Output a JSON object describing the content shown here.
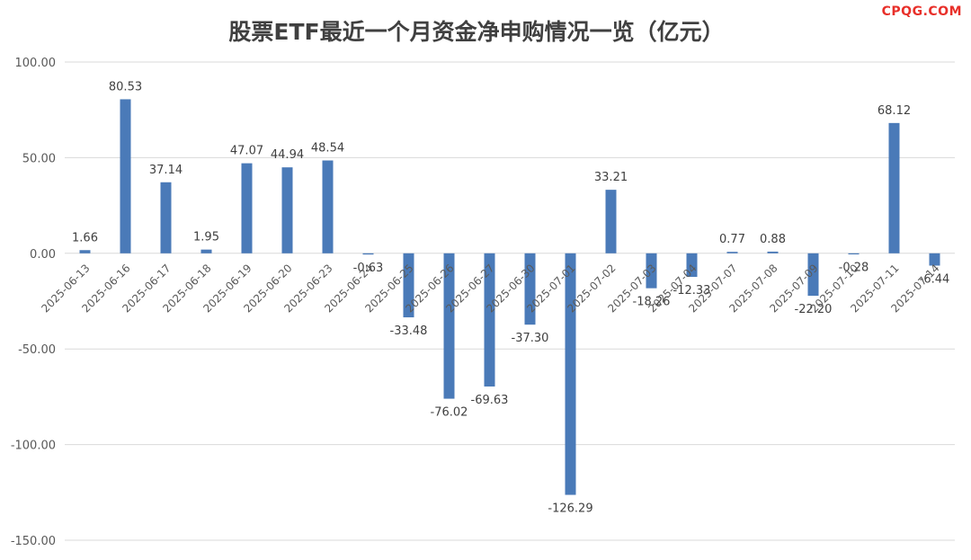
{
  "watermark": "CPQG.COM",
  "chart_data": {
    "type": "bar",
    "title": "股票ETF最近一个月资金净申购情况一览（亿元）",
    "xlabel": "",
    "ylabel": "",
    "ylim": [
      -150,
      100
    ],
    "yticks": [
      100,
      50,
      0,
      -50,
      -100,
      -150
    ],
    "ytick_labels": [
      "100.00",
      "50.00",
      "0.00",
      "-50.00",
      "-100.00",
      "-150.00"
    ],
    "grid": true,
    "legend": "none",
    "bar_color": "#4a7ab8",
    "categories": [
      "2025-06-13",
      "2025-06-16",
      "2025-06-17",
      "2025-06-18",
      "2025-06-19",
      "2025-06-20",
      "2025-06-23",
      "2025-06-24",
      "2025-06-25",
      "2025-06-26",
      "2025-06-27",
      "2025-06-30",
      "2025-07-01",
      "2025-07-02",
      "2025-07-03",
      "2025-07-04",
      "2025-07-07",
      "2025-07-08",
      "2025-07-09",
      "2025-07-10",
      "2025-07-11",
      "2025-07-14"
    ],
    "values": [
      1.66,
      80.53,
      37.14,
      1.95,
      47.07,
      44.94,
      48.54,
      -0.63,
      -33.48,
      -76.02,
      -69.63,
      -37.3,
      -126.29,
      33.21,
      -18.26,
      -12.33,
      0.77,
      0.88,
      -22.2,
      -0.28,
      68.12,
      -6.44
    ],
    "value_labels": [
      "1.66",
      "80.53",
      "37.14",
      "1.95",
      "47.07",
      "44.94",
      "48.54",
      "-0.63",
      "-33.48",
      "-76.02",
      "-69.63",
      "-37.30",
      "-126.29",
      "33.21",
      "-18.26",
      "-12.33",
      "0.77",
      "0.88",
      "-22.20",
      "-0.28",
      "68.12",
      "-6.44"
    ]
  }
}
